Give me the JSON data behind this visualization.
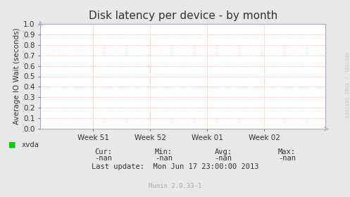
{
  "title": "Disk latency per device - by month",
  "ylabel": "Average IO Wait (seconds)",
  "x_tick_labels": [
    "Week 51",
    "Week 52",
    "Week 01",
    "Week 02"
  ],
  "x_tick_positions": [
    0.185,
    0.385,
    0.585,
    0.785
  ],
  "ylim": [
    0.0,
    1.0
  ],
  "yticks": [
    0.0,
    0.1,
    0.2,
    0.3,
    0.4,
    0.5,
    0.6,
    0.7,
    0.8,
    0.9,
    1.0
  ],
  "bg_color": "#e8e8e8",
  "plot_bg_color": "#ffffff",
  "grid_color": "#ff9999",
  "border_color": "#aaaacc",
  "legend_label": "xvda",
  "legend_color": "#00cc00",
  "cur_label": "Cur:",
  "cur_val": "-nan",
  "min_label": "Min:",
  "min_val": "-nan",
  "avg_label": "Avg:",
  "avg_val": "-nan",
  "max_label": "Max:",
  "max_val": "-nan",
  "last_update": "Last update:  Mon Jun 17 23:00:00 2013",
  "munin_label": "Munin 2.0.33-1",
  "rrdtool_label": "RRDTOOL / TOBI OETIKER",
  "title_fontsize": 11,
  "axis_label_fontsize": 7.5,
  "tick_fontsize": 7.5,
  "annotation_fontsize": 7.5,
  "small_fontsize": 6.5,
  "font_family": "DejaVu Sans"
}
